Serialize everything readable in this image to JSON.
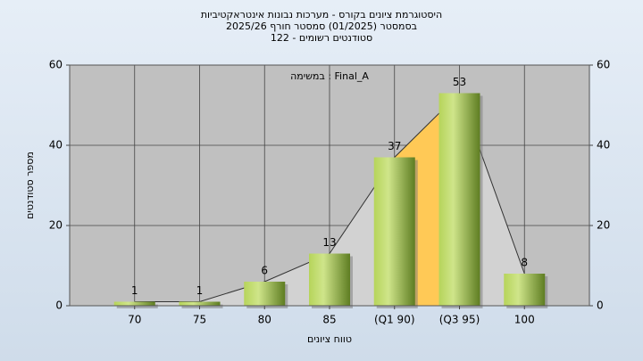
{
  "chart_data": {
    "type": "bar",
    "title": "היסטוגרמת ציונים בקורס - מערכות נבונות אינטראקטיביות",
    "subtitle": "בסמסטר  (01/2025)  סמסטר חורף 2025/26",
    "subtitle2": "סטודנטים רשומים - 122",
    "annotation": "במשימה : Final_A",
    "x_label": "טווח ציונים",
    "y_label": "מספר סטודנטים",
    "categories": [
      "70",
      "75",
      "80",
      "85",
      "(Q1 90)",
      "(Q3 95)",
      "100"
    ],
    "values": [
      1,
      1,
      6,
      13,
      37,
      53,
      8
    ],
    "color": "#8fb33c",
    "ylim": [
      0,
      60
    ],
    "yticks": [
      0,
      20,
      40,
      60
    ],
    "y2lim": [
      0,
      60
    ],
    "y2ticks": [
      0,
      20,
      40,
      60
    ],
    "grid": true,
    "highlight": {
      "from": 4,
      "to": 5,
      "color": "#ffc956"
    }
  }
}
